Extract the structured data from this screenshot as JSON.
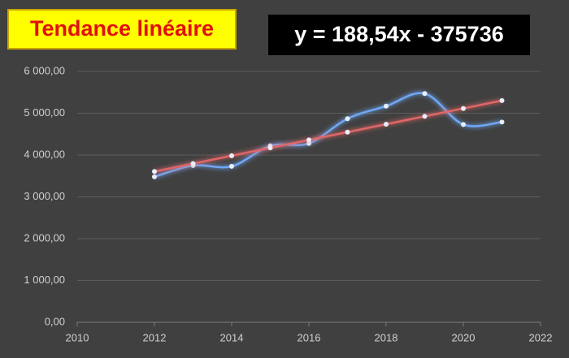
{
  "chart_data": {
    "type": "line",
    "title": "Tendance linéaire",
    "annotations": [
      "y = 188,54x - 375736"
    ],
    "x": [
      2012,
      2013,
      2014,
      2015,
      2016,
      2017,
      2018,
      2019,
      2020,
      2021
    ],
    "series": [
      {
        "color": "#6fa8f5",
        "smooth": true,
        "values": [
          3480,
          3750,
          3730,
          4220,
          4280,
          4870,
          5170,
          5470,
          4730,
          4790
        ]
      },
      {
        "color": "#e06666",
        "smooth": false,
        "values": [
          3606,
          3795,
          3984,
          4172,
          4361,
          4549,
          4738,
          4926,
          5115,
          5303
        ]
      }
    ],
    "xlim": [
      2010,
      2022
    ],
    "xticks": [
      2010,
      2012,
      2014,
      2016,
      2018,
      2020,
      2022
    ],
    "ylim": [
      0,
      6000
    ],
    "yticks": [
      {
        "value": 0,
        "label": "0,00"
      },
      {
        "value": 1000,
        "label": "1 000,00"
      },
      {
        "value": 2000,
        "label": "2 000,00"
      },
      {
        "value": 3000,
        "label": "3 000,00"
      },
      {
        "value": 4000,
        "label": "4 000,00"
      },
      {
        "value": 5000,
        "label": "5 000,00"
      },
      {
        "value": 6000,
        "label": "6 000,00"
      }
    ],
    "grid": true
  }
}
